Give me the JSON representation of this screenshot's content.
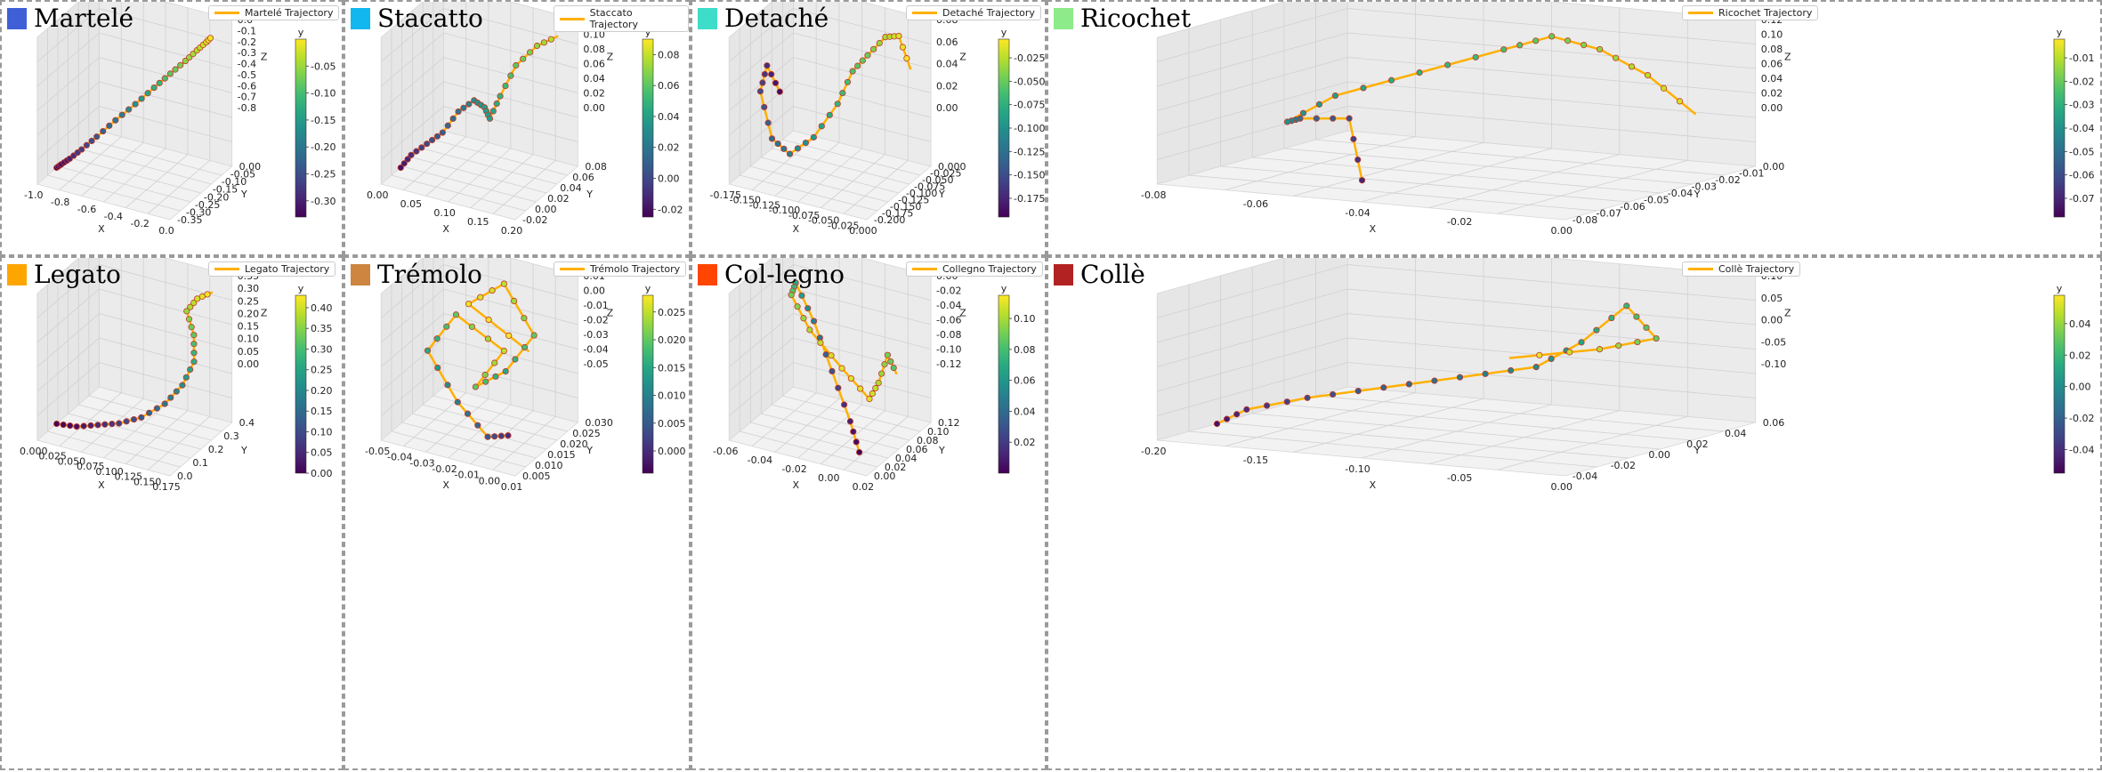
{
  "figure": {
    "grid": {
      "rows": 2,
      "cols": 4
    },
    "trajectory_color": "#FFB000",
    "marker_edge_color": "#c0392b",
    "colormap": "viridis"
  },
  "chart_data": [
    {
      "type": "line3d",
      "title": "Martelé",
      "title_color": "#3F5FD6",
      "legend": "Martelé Trajectory",
      "colorbar_label": "y",
      "colorbar_ticks": [
        "-0.05",
        "-0.10",
        "-0.15",
        "-0.20",
        "-0.25",
        "-0.30"
      ],
      "colorbar_range": [
        -0.33,
        0.0
      ],
      "x_label": "X",
      "y_label": "Y",
      "z_label": "Z",
      "x_ticks": [
        "-1.0",
        "-0.8",
        "-0.6",
        "-0.4",
        "-0.2",
        "0.0"
      ],
      "y_ticks": [
        "0.00",
        "-0.05",
        "-0.10",
        "-0.15",
        "-0.20",
        "-0.25",
        "-0.30",
        "-0.35"
      ],
      "z_ticks": [
        "0.0",
        "-0.1",
        "-0.2",
        "-0.3",
        "-0.4",
        "-0.5",
        "-0.6",
        "-0.7",
        "-0.8"
      ],
      "x": [
        -1.0,
        -0.97,
        -0.92,
        -0.85,
        -0.75,
        -0.63,
        -0.5,
        -0.38,
        -0.27,
        -0.17,
        -0.09,
        -0.03,
        0.0
      ],
      "y": [
        -0.33,
        -0.32,
        -0.3,
        -0.27,
        -0.24,
        -0.2,
        -0.16,
        -0.12,
        -0.09,
        -0.06,
        -0.04,
        -0.02,
        0.0
      ],
      "z": [
        -0.8,
        -0.78,
        -0.75,
        -0.7,
        -0.62,
        -0.52,
        -0.42,
        -0.32,
        -0.23,
        -0.15,
        -0.08,
        -0.03,
        0.0
      ]
    },
    {
      "type": "line3d",
      "title": "Stacatto",
      "title_color": "#12B7F0",
      "legend": "Staccato Trajectory",
      "colorbar_label": "y",
      "colorbar_ticks": [
        "0.08",
        "0.06",
        "0.04",
        "0.02",
        "0.00",
        "-0.02"
      ],
      "colorbar_range": [
        -0.025,
        0.09
      ],
      "x_label": "X",
      "y_label": "Y",
      "z_label": "Z",
      "x_ticks": [
        "0.00",
        "0.05",
        "0.10",
        "0.15",
        "0.20"
      ],
      "y_ticks": [
        "0.08",
        "0.06",
        "0.04",
        "0.02",
        "0.00",
        "-0.02"
      ],
      "z_ticks": [
        "0.12",
        "0.10",
        "0.08",
        "0.06",
        "0.04",
        "0.02",
        "0.00"
      ],
      "x": [
        0.0,
        0.01,
        0.03,
        0.05,
        0.07,
        0.09,
        0.1,
        0.11,
        0.12,
        0.14,
        0.17,
        0.2
      ],
      "y": [
        -0.02,
        -0.01,
        0.0,
        0.01,
        0.02,
        0.03,
        0.04,
        0.04,
        0.05,
        0.06,
        0.07,
        0.08
      ],
      "z": [
        0.0,
        0.01,
        0.02,
        0.03,
        0.05,
        0.06,
        0.05,
        0.04,
        0.06,
        0.09,
        0.11,
        0.12
      ]
    },
    {
      "type": "line3d",
      "title": "Detaché",
      "title_color": "#3EDDC9",
      "legend": "Detaché Trajectory",
      "colorbar_label": "y",
      "colorbar_ticks": [
        "-0.025",
        "-0.050",
        "-0.075",
        "-0.100",
        "-0.125",
        "-0.150",
        "-0.175"
      ],
      "colorbar_range": [
        -0.195,
        -0.005
      ],
      "x_label": "X",
      "y_label": "Y",
      "z_label": "Z",
      "x_ticks": [
        "-0.175",
        "-0.150",
        "-0.125",
        "-0.100",
        "-0.075",
        "-0.050",
        "-0.025",
        "0.000"
      ],
      "y_ticks": [
        "0.000",
        "-0.025",
        "-0.050",
        "-0.075",
        "-0.100",
        "-0.125",
        "-0.150",
        "-0.175",
        "-0.200"
      ],
      "z_ticks": [
        "0.08",
        "0.06",
        "0.04",
        "0.02",
        "0.00"
      ],
      "x": [
        -0.13,
        -0.16,
        -0.18,
        -0.17,
        -0.15,
        -0.12,
        -0.09,
        -0.07,
        -0.05,
        -0.03,
        -0.015,
        0.0
      ],
      "y": [
        -0.19,
        -0.17,
        -0.15,
        -0.13,
        -0.11,
        -0.09,
        -0.07,
        -0.06,
        -0.05,
        -0.03,
        -0.015,
        -0.005
      ],
      "z": [
        0.04,
        0.05,
        0.03,
        0.0,
        -0.01,
        0.0,
        0.02,
        0.04,
        0.05,
        0.06,
        0.06,
        0.04
      ]
    },
    {
      "type": "line3d",
      "title": "Ricochet",
      "title_color": "#8DEB8A",
      "legend": "Ricochet Trajectory",
      "colorbar_label": "y",
      "colorbar_ticks": [
        "-0.01",
        "-0.02",
        "-0.03",
        "-0.04",
        "-0.05",
        "-0.06",
        "-0.07"
      ],
      "colorbar_range": [
        -0.078,
        -0.002
      ],
      "x_label": "X",
      "y_label": "Y",
      "z_label": "Z",
      "x_ticks": [
        "-0.08",
        "-0.06",
        "-0.04",
        "-0.02",
        "0.00"
      ],
      "y_ticks": [
        "0.00",
        "-0.01",
        "-0.02",
        "-0.03",
        "-0.04",
        "-0.05",
        "-0.06",
        "-0.07",
        "-0.08"
      ],
      "z_ticks": [
        "0.12",
        "0.10",
        "0.08",
        "0.06",
        "0.04",
        "0.02",
        "0.00"
      ],
      "x": [
        -0.04,
        -0.05,
        -0.07,
        -0.08,
        -0.07,
        -0.05,
        -0.03,
        -0.02,
        -0.01,
        0.0,
        0.01
      ],
      "y": [
        -0.07,
        -0.06,
        -0.05,
        -0.04,
        -0.035,
        -0.03,
        -0.025,
        -0.02,
        -0.015,
        -0.01,
        -0.005
      ],
      "z": [
        0.02,
        0.06,
        0.05,
        0.04,
        0.06,
        0.08,
        0.1,
        0.11,
        0.1,
        0.08,
        0.05
      ]
    },
    {
      "type": "line3d",
      "title": "Legato",
      "title_color": "#FFA500",
      "legend": "Legato Trajectory",
      "colorbar_label": "y",
      "colorbar_ticks": [
        "0.40",
        "0.35",
        "0.30",
        "0.25",
        "0.20",
        "0.15",
        "0.10",
        "0.05",
        "0.00"
      ],
      "colorbar_range": [
        0.0,
        0.43
      ],
      "x_label": "X",
      "y_label": "Y",
      "z_label": "Z",
      "x_ticks": [
        "0.000",
        "0.025",
        "0.050",
        "0.075",
        "0.100",
        "0.125",
        "0.150",
        "0.175"
      ],
      "y_ticks": [
        "0.4",
        "0.3",
        "0.2",
        "0.1",
        "0.0"
      ],
      "z_ticks": [
        "0.35",
        "0.30",
        "0.25",
        "0.20",
        "0.15",
        "0.10",
        "0.05",
        "0.00"
      ],
      "x": [
        0.0,
        0.03,
        0.06,
        0.09,
        0.12,
        0.15,
        0.17,
        0.18,
        0.17,
        0.15,
        0.16,
        0.18
      ],
      "y": [
        0.0,
        0.02,
        0.05,
        0.08,
        0.12,
        0.17,
        0.22,
        0.27,
        0.32,
        0.36,
        0.4,
        0.43
      ],
      "z": [
        0.0,
        0.0,
        0.01,
        0.02,
        0.04,
        0.08,
        0.13,
        0.19,
        0.25,
        0.3,
        0.33,
        0.35
      ]
    },
    {
      "type": "line3d",
      "title": "Trémolo",
      "title_color": "#CD853F",
      "legend": "Trémolo Trajectory",
      "colorbar_label": "y",
      "colorbar_ticks": [
        "0.025",
        "0.020",
        "0.015",
        "0.010",
        "0.005",
        "0.000"
      ],
      "colorbar_range": [
        -0.004,
        0.028
      ],
      "x_label": "X",
      "y_label": "Y",
      "z_label": "Z",
      "x_ticks": [
        "-0.05",
        "-0.04",
        "-0.03",
        "-0.02",
        "-0.01",
        "0.00",
        "0.01"
      ],
      "y_ticks": [
        "0.030",
        "0.025",
        "0.020",
        "0.015",
        "0.010",
        "0.005"
      ],
      "z_ticks": [
        "0.01",
        "0.00",
        "-0.01",
        "-0.02",
        "-0.03",
        "-0.04",
        "-0.05"
      ],
      "x": [
        0.005,
        -0.01,
        -0.03,
        -0.05,
        -0.04,
        -0.02,
        -0.03,
        -0.01,
        0.0,
        -0.02,
        -0.04,
        -0.01
      ],
      "y": [
        0.0,
        0.005,
        0.01,
        0.015,
        0.02,
        0.025,
        0.02,
        0.015,
        0.02,
        0.025,
        0.027,
        0.028
      ],
      "z": [
        -0.04,
        -0.045,
        -0.04,
        -0.03,
        -0.02,
        -0.03,
        -0.04,
        -0.03,
        -0.02,
        -0.01,
        -0.02,
        -0.03
      ]
    },
    {
      "type": "line3d",
      "title": "Col-legno",
      "title_color": "#FF4500",
      "legend": "Collegno Trajectory",
      "colorbar_label": "y",
      "colorbar_ticks": [
        "0.10",
        "0.08",
        "0.06",
        "0.04",
        "0.02"
      ],
      "colorbar_range": [
        0.0,
        0.115
      ],
      "x_label": "X",
      "y_label": "Y",
      "z_label": "Z",
      "x_ticks": [
        "-0.06",
        "-0.04",
        "-0.02",
        "0.00",
        "0.02"
      ],
      "y_ticks": [
        "0.12",
        "0.10",
        "0.08",
        "0.06",
        "0.04",
        "0.02",
        "0.00"
      ],
      "z_ticks": [
        "0.00",
        "-0.02",
        "-0.04",
        "-0.06",
        "-0.08",
        "-0.10",
        "-0.12"
      ],
      "x": [
        0.02,
        0.01,
        -0.01,
        -0.03,
        -0.05,
        -0.06,
        -0.05,
        -0.03,
        -0.01,
        0.0,
        0.01,
        0.02
      ],
      "y": [
        0.0,
        0.01,
        0.03,
        0.05,
        0.07,
        0.09,
        0.1,
        0.11,
        0.11,
        0.1,
        0.09,
        0.08
      ],
      "z": [
        -0.1,
        -0.08,
        -0.05,
        -0.02,
        0.0,
        -0.02,
        -0.05,
        -0.08,
        -0.1,
        -0.08,
        -0.05,
        -0.06
      ]
    },
    {
      "type": "line3d",
      "title": "Collè",
      "title_color": "#B22222",
      "legend": "Collè Trajectory",
      "colorbar_label": "y",
      "colorbar_ticks": [
        "0.04",
        "0.02",
        "0.00",
        "-0.02",
        "-0.04"
      ],
      "colorbar_range": [
        -0.055,
        0.058
      ],
      "x_label": "X",
      "y_label": "Y",
      "z_label": "Z",
      "x_ticks": [
        "-0.20",
        "-0.15",
        "-0.10",
        "-0.05",
        "0.00"
      ],
      "y_ticks": [
        "0.06",
        "0.04",
        "0.02",
        "0.00",
        "-0.02",
        "-0.04"
      ],
      "z_ticks": [
        "0.10",
        "0.05",
        "0.00",
        "-0.05",
        "-0.10"
      ],
      "x": [
        -0.21,
        -0.2,
        -0.17,
        -0.13,
        -0.09,
        -0.05,
        -0.03,
        -0.01,
        0.0,
        -0.05,
        -0.12
      ],
      "y": [
        -0.05,
        -0.04,
        -0.03,
        -0.02,
        -0.01,
        0.0,
        0.01,
        0.02,
        0.03,
        0.045,
        0.058
      ],
      "z": [
        -0.05,
        -0.04,
        -0.03,
        -0.02,
        -0.01,
        0.0,
        0.02,
        0.05,
        0.02,
        0.0,
        -0.02
      ]
    }
  ]
}
